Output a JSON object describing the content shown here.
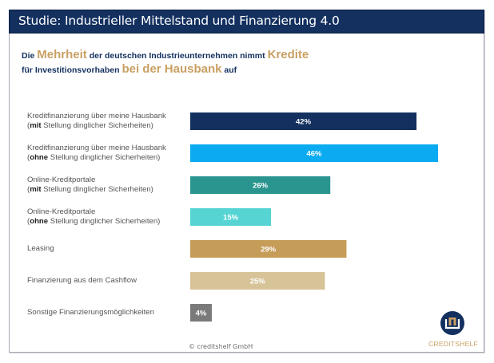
{
  "header": {
    "title": "Studie: Industrieller Mittelstand und Finanzierung 4.0"
  },
  "subtitle": {
    "line1": [
      {
        "text": "Die ",
        "highlight": false
      },
      {
        "text": "Mehrheit",
        "highlight": true
      },
      {
        "text": " der deutschen Industrieunternehmen nimmt ",
        "highlight": false
      },
      {
        "text": "Kredite",
        "highlight": true
      }
    ],
    "line2": [
      {
        "text": "für Investitionsvorhaben ",
        "highlight": false
      },
      {
        "text": "bei der Hausbank",
        "highlight": true
      },
      {
        "text": " auf",
        "highlight": false
      }
    ]
  },
  "colors": {
    "header_bg": "#13305f",
    "title_text": "#13305f",
    "highlight": "#c9a063",
    "label_text": "#555555",
    "bar_label_text": "#ffffff"
  },
  "chart_data": {
    "type": "bar",
    "orientation": "horizontal",
    "title": "Die Mehrheit der deutschen Industrieunternehmen nimmt Kredite für Investitionsvorhaben bei der Hausbank auf",
    "xlabel": "",
    "ylabel": "",
    "unit": "%",
    "xlim": [
      0,
      46
    ],
    "grid": false,
    "legend": "none",
    "categories": [
      {
        "line1": "Kreditfinanzierung über meine Hausbank",
        "line2_bold": "mit",
        "line2_rest": " Stellung dinglicher Sicherheiten)"
      },
      {
        "line1": "Kreditfinanzierung über meine Hausbank",
        "line2_bold": "ohne",
        "line2_rest": " Stellung dinglicher Sicherheiten)"
      },
      {
        "line1": "Online-Kreditportale",
        "line2_bold": "mit",
        "line2_rest": " Stellung dinglicher Sicherheiten)"
      },
      {
        "line1": "Online-Kreditportale",
        "line2_bold": "ohne",
        "line2_rest": " Stellung dinglicher Sicherheiten)"
      },
      {
        "line1": "Leasing",
        "line2_bold": "",
        "line2_rest": ""
      },
      {
        "line1": "Finanzierung aus dem Cashflow",
        "line2_bold": "",
        "line2_rest": ""
      },
      {
        "line1": "Sonstige Finanzierungsmöglichkeiten",
        "line2_bold": "",
        "line2_rest": ""
      }
    ],
    "values": [
      42,
      46,
      26,
      15,
      29,
      25,
      4
    ],
    "value_labels": [
      "42%",
      "46%",
      "26%",
      "15%",
      "29%",
      "25%",
      "4%"
    ],
    "bar_colors": [
      "#13305f",
      "#0aabf0",
      "#2a958e",
      "#55d4d3",
      "#c59c58",
      "#d7c398",
      "#7a7a7a"
    ]
  },
  "footer": {
    "copyright": "© creditshelf GmbH"
  },
  "logo": {
    "text": "CREDITSHELF",
    "icon": "creditshelf-logo-icon"
  }
}
